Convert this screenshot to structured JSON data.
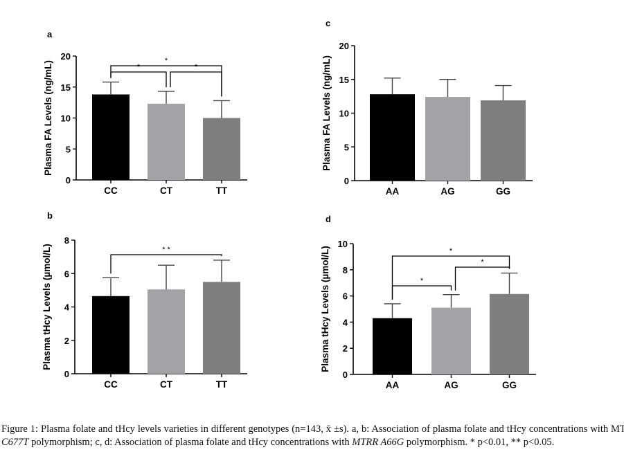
{
  "chart_data": [
    {
      "panel": "a",
      "type": "bar",
      "ylabel": "Plasma FA Levels (ng/mL)",
      "ylim": [
        0,
        20
      ],
      "yticks": [
        0,
        5,
        10,
        15,
        20
      ],
      "categories": [
        "CC",
        "CT",
        "TT"
      ],
      "values": [
        13.8,
        12.3,
        10.0
      ],
      "errors": [
        2.0,
        2.0,
        2.8
      ],
      "colors": [
        "#000000",
        "#a3a3a7",
        "#7f7f7f"
      ],
      "comparisons": [
        {
          "from": 0,
          "to": 1,
          "label": "*"
        },
        {
          "from": 1,
          "to": 2,
          "label": "*"
        },
        {
          "from": 0,
          "to": 2,
          "label": "*"
        }
      ]
    },
    {
      "panel": "c",
      "type": "bar",
      "ylabel": "Plasma FA Levels (ng/mL)",
      "ylim": [
        0,
        20
      ],
      "yticks": [
        0,
        5,
        10,
        15,
        20
      ],
      "categories": [
        "AA",
        "AG",
        "GG"
      ],
      "values": [
        12.8,
        12.4,
        11.9
      ],
      "errors": [
        2.4,
        2.6,
        2.2
      ],
      "colors": [
        "#000000",
        "#a3a3a7",
        "#7f7f7f"
      ],
      "comparisons": []
    },
    {
      "panel": "b",
      "type": "bar",
      "ylabel": "Plasma tHcy Levels (µmol/L)",
      "ylim": [
        0,
        8
      ],
      "yticks": [
        0,
        2,
        4,
        6,
        8
      ],
      "categories": [
        "CC",
        "CT",
        "TT"
      ],
      "values": [
        4.65,
        5.05,
        5.5
      ],
      "errors": [
        1.1,
        1.45,
        1.3
      ],
      "colors": [
        "#000000",
        "#a3a3a7",
        "#7f7f7f"
      ],
      "comparisons": [
        {
          "from": 0,
          "to": 2,
          "label": "* *"
        }
      ]
    },
    {
      "panel": "d",
      "type": "bar",
      "ylabel": "Plasma tHcy Levels (µmol/L)",
      "ylim": [
        0,
        10
      ],
      "yticks": [
        0,
        2,
        4,
        6,
        8,
        10
      ],
      "categories": [
        "AA",
        "AG",
        "GG"
      ],
      "values": [
        4.3,
        5.1,
        6.15
      ],
      "errors": [
        1.1,
        1.0,
        1.6
      ],
      "colors": [
        "#000000",
        "#a3a3a7",
        "#7f7f7f"
      ],
      "comparisons": [
        {
          "from": 0,
          "to": 1,
          "label": "*"
        },
        {
          "from": 1,
          "to": 2,
          "label": "*"
        },
        {
          "from": 0,
          "to": 2,
          "label": "*"
        }
      ]
    }
  ],
  "caption": {
    "fig": "Figure 1:",
    "part1": " Plasma folate and tHcy levels varieties in different genotypes (n=143, x̄ ±s). a, b: Association of plasma folate and tHcy concentrations with MTHFR ",
    "gene1": "C677T",
    "part2": " polymorphism; c, d: Association of plasma folate and tHcy concentrations with ",
    "gene2": "MTRR A66G",
    "part3": " polymorphism. * p<0.01, ** p<0.05."
  }
}
